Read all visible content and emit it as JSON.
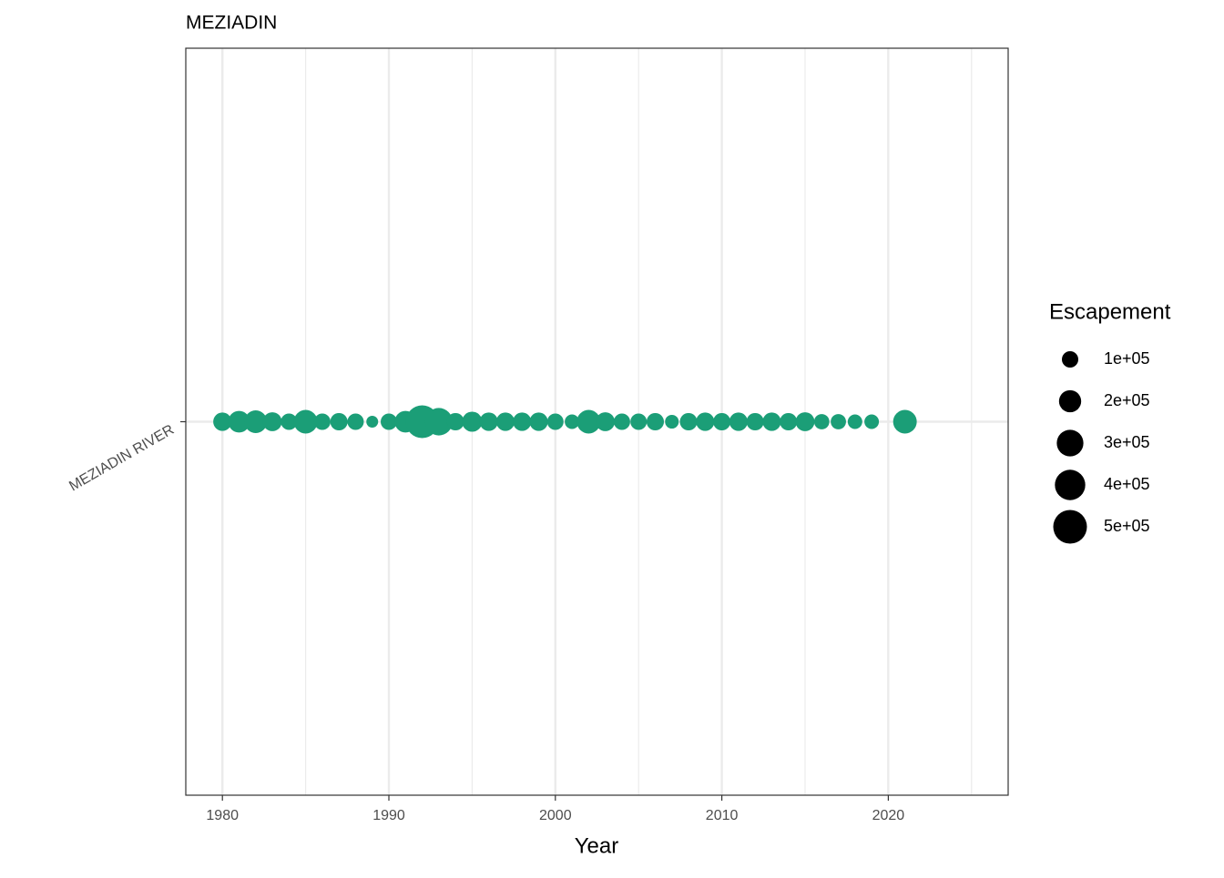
{
  "chart_data": {
    "type": "dot",
    "title": "MEZIADIN",
    "x_label": "Year",
    "categories": [
      "MEZIADIN RIVER"
    ],
    "series": [
      {
        "color": "#1b9e77",
        "x": [
          1980,
          1981,
          1982,
          1983,
          1984,
          1985,
          1986,
          1987,
          1988,
          1989,
          1990,
          1991,
          1992,
          1993,
          1994,
          1995,
          1996,
          1997,
          1998,
          1999,
          2000,
          2001,
          2002,
          2003,
          2004,
          2005,
          2006,
          2007,
          2008,
          2009,
          2010,
          2011,
          2012,
          2013,
          2014,
          2015,
          2016,
          2017,
          2018,
          2019,
          2021
        ],
        "values": [
          130000,
          190000,
          210000,
          140000,
          100000,
          230000,
          100000,
          115000,
          100000,
          45000,
          100000,
          190000,
          470000,
          320000,
          115000,
          160000,
          130000,
          130000,
          130000,
          130000,
          100000,
          75000,
          230000,
          140000,
          100000,
          100000,
          115000,
          65000,
          115000,
          130000,
          115000,
          130000,
          115000,
          130000,
          115000,
          140000,
          85000,
          85000,
          75000,
          75000,
          230000
        ]
      }
    ],
    "xlim": [
      1977.8,
      2027.2
    ],
    "xticks": [
      1980,
      1990,
      2000,
      2010,
      2020
    ],
    "xminorticks": [
      1985,
      1995,
      2005,
      2015,
      2025
    ],
    "grid": true,
    "size_legend": {
      "title": "Escapement",
      "ticks": [
        {
          "value": 100000,
          "label": "1e+05"
        },
        {
          "value": 200000,
          "label": "2e+05"
        },
        {
          "value": 300000,
          "label": "3e+05"
        },
        {
          "value": 400000,
          "label": "4e+05"
        },
        {
          "value": 500000,
          "label": "5e+05"
        }
      ],
      "color": "#000000"
    }
  }
}
